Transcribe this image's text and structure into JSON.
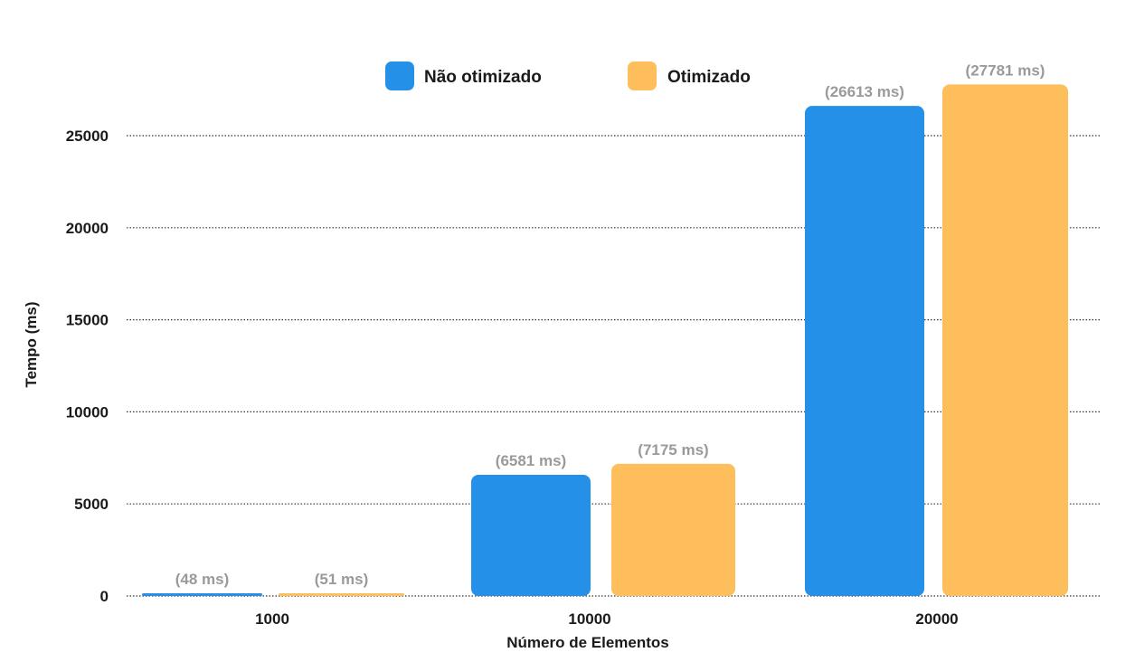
{
  "chart_data": {
    "type": "bar",
    "title": "",
    "xlabel": "Número de Elementos",
    "ylabel": "Tempo (ms)",
    "categories": [
      "1000",
      "10000",
      "20000"
    ],
    "ylim": [
      0,
      27000
    ],
    "yticks": [
      0,
      5000,
      10000,
      15000,
      20000,
      25000
    ],
    "grid": true,
    "grid_style": "dotted",
    "legend_position": "top-center",
    "series": [
      {
        "name": "Não otimizado",
        "color": "#2490E8",
        "values": [
          48,
          6581,
          26613
        ],
        "labels": [
          "(48 ms)",
          "(6581 ms)",
          "(26613 ms)"
        ]
      },
      {
        "name": "Otimizado",
        "color": "#FDBE5B",
        "values": [
          51,
          7175,
          27781
        ],
        "labels": [
          "(51 ms)",
          "(7175 ms)",
          "(27781 ms)"
        ]
      }
    ]
  }
}
